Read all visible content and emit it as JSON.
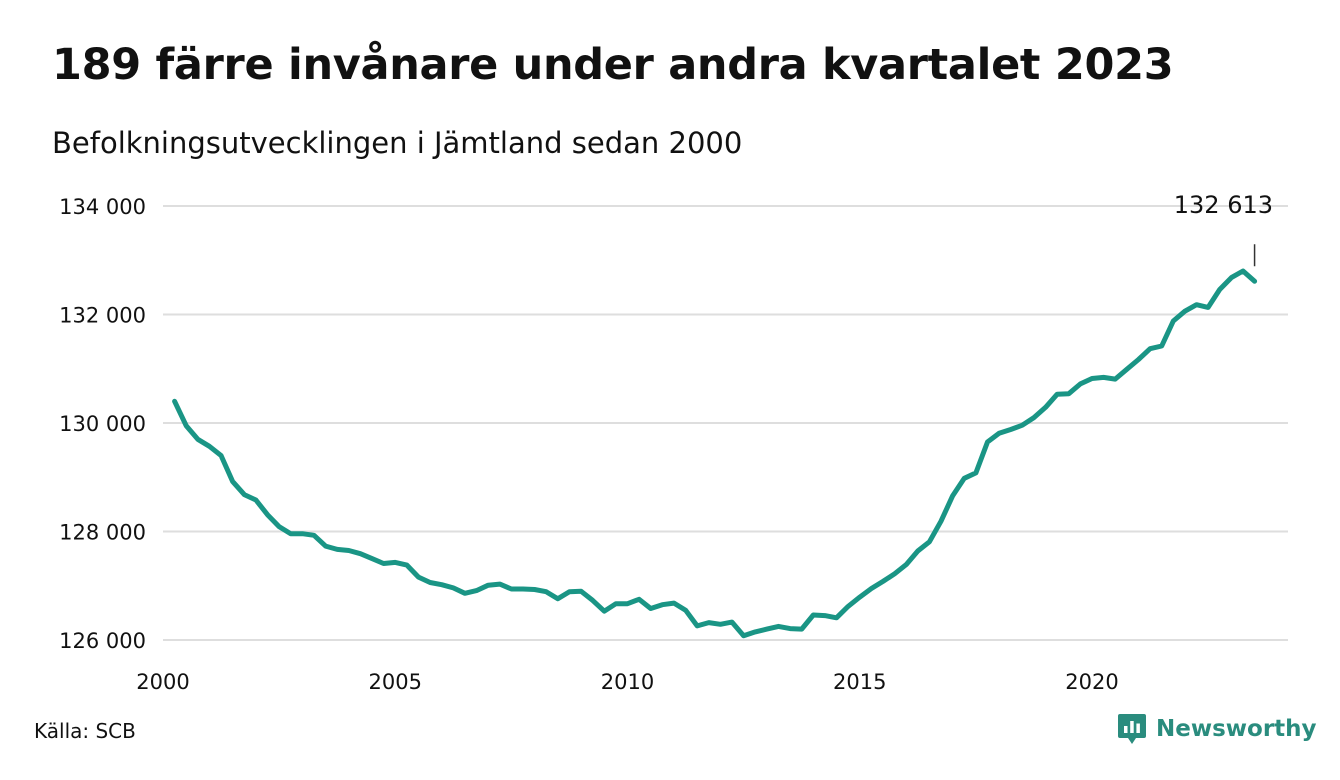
{
  "title": "189 färre invånare under andra kvartalet 2023",
  "subtitle": "Befolkningsutvecklingen i Jämtland sedan 2000",
  "source": "Källa: SCB",
  "brand": "Newsworthy",
  "colors": {
    "line": "#1a9585",
    "grid": "#dedede",
    "brand": "#2a8c7e"
  },
  "icons": [
    "newsworthy-logo-icon"
  ],
  "chart_data": {
    "type": "line",
    "title": "189 färre invånare under andra kvartalet 2023",
    "subtitle": "Befolkningsutvecklingen i Jämtland sedan 2000",
    "xlabel": "",
    "ylabel": "",
    "xlim": [
      2000,
      2024
    ],
    "ylim": [
      126000,
      134000
    ],
    "x_ticks": [
      2000,
      2005,
      2010,
      2015,
      2020
    ],
    "x_tick_labels": [
      "2000",
      "2005",
      "2010",
      "2015",
      "2020"
    ],
    "y_ticks": [
      126000,
      128000,
      130000,
      132000,
      134000
    ],
    "y_tick_labels": [
      "126 000",
      "128 000",
      "130 000",
      "132 000",
      "134 000"
    ],
    "grid": "horizontal",
    "annotation": {
      "text": "132 613",
      "x": 2023.5,
      "y": 132613
    },
    "series": [
      {
        "x": [
          2000.25,
          2000.5,
          2000.75,
          2001.0,
          2001.25,
          2001.5,
          2001.75,
          2002.0,
          2002.25,
          2002.5,
          2002.75,
          2003.0,
          2003.25,
          2003.5,
          2003.75,
          2004.0,
          2004.25,
          2004.5,
          2004.75,
          2005.0,
          2005.25,
          2005.5,
          2005.75,
          2006.0,
          2006.25,
          2006.5,
          2006.75,
          2007.0,
          2007.25,
          2007.5,
          2007.75,
          2008.0,
          2008.25,
          2008.5,
          2008.75,
          2009.0,
          2009.25,
          2009.5,
          2009.75,
          2010.0,
          2010.25,
          2010.5,
          2010.75,
          2011.0,
          2011.25,
          2011.5,
          2011.75,
          2012.0,
          2012.25,
          2012.5,
          2012.75,
          2013.0,
          2013.25,
          2013.5,
          2013.75,
          2014.0,
          2014.25,
          2014.5,
          2014.75,
          2015.0,
          2015.25,
          2015.5,
          2015.75,
          2016.0,
          2016.25,
          2016.5,
          2016.75,
          2017.0,
          2017.25,
          2017.5,
          2017.75,
          2018.0,
          2018.25,
          2018.5,
          2018.75,
          2019.0,
          2019.25,
          2019.5,
          2019.75,
          2020.0,
          2020.25,
          2020.5,
          2020.75,
          2021.0,
          2021.25,
          2021.5,
          2021.75,
          2022.0,
          2022.25,
          2022.5,
          2022.75,
          2023.0,
          2023.25,
          2023.5
        ],
        "values": [
          130400,
          129950,
          129700,
          129570,
          129400,
          128920,
          128680,
          128580,
          128310,
          128090,
          127960,
          127960,
          127930,
          127730,
          127670,
          127650,
          127590,
          127500,
          127410,
          127430,
          127380,
          127160,
          127060,
          127020,
          126960,
          126860,
          126910,
          127010,
          127030,
          126940,
          126940,
          126930,
          126890,
          126760,
          126890,
          126900,
          126730,
          126530,
          126670,
          126670,
          126750,
          126580,
          126650,
          126680,
          126550,
          126260,
          126320,
          126290,
          126330,
          126080,
          126150,
          126200,
          126250,
          126210,
          126200,
          126460,
          126450,
          126410,
          126620,
          126790,
          126950,
          127080,
          127220,
          127390,
          127640,
          127810,
          128190,
          128660,
          128980,
          129080,
          129650,
          129810,
          129880,
          129960,
          130100,
          130290,
          130530,
          130540,
          130720,
          130820,
          130840,
          130810,
          130990,
          131170,
          131370,
          131420,
          131880,
          132060,
          132180,
          132130,
          132460,
          132680,
          132802,
          132613
        ]
      }
    ]
  }
}
